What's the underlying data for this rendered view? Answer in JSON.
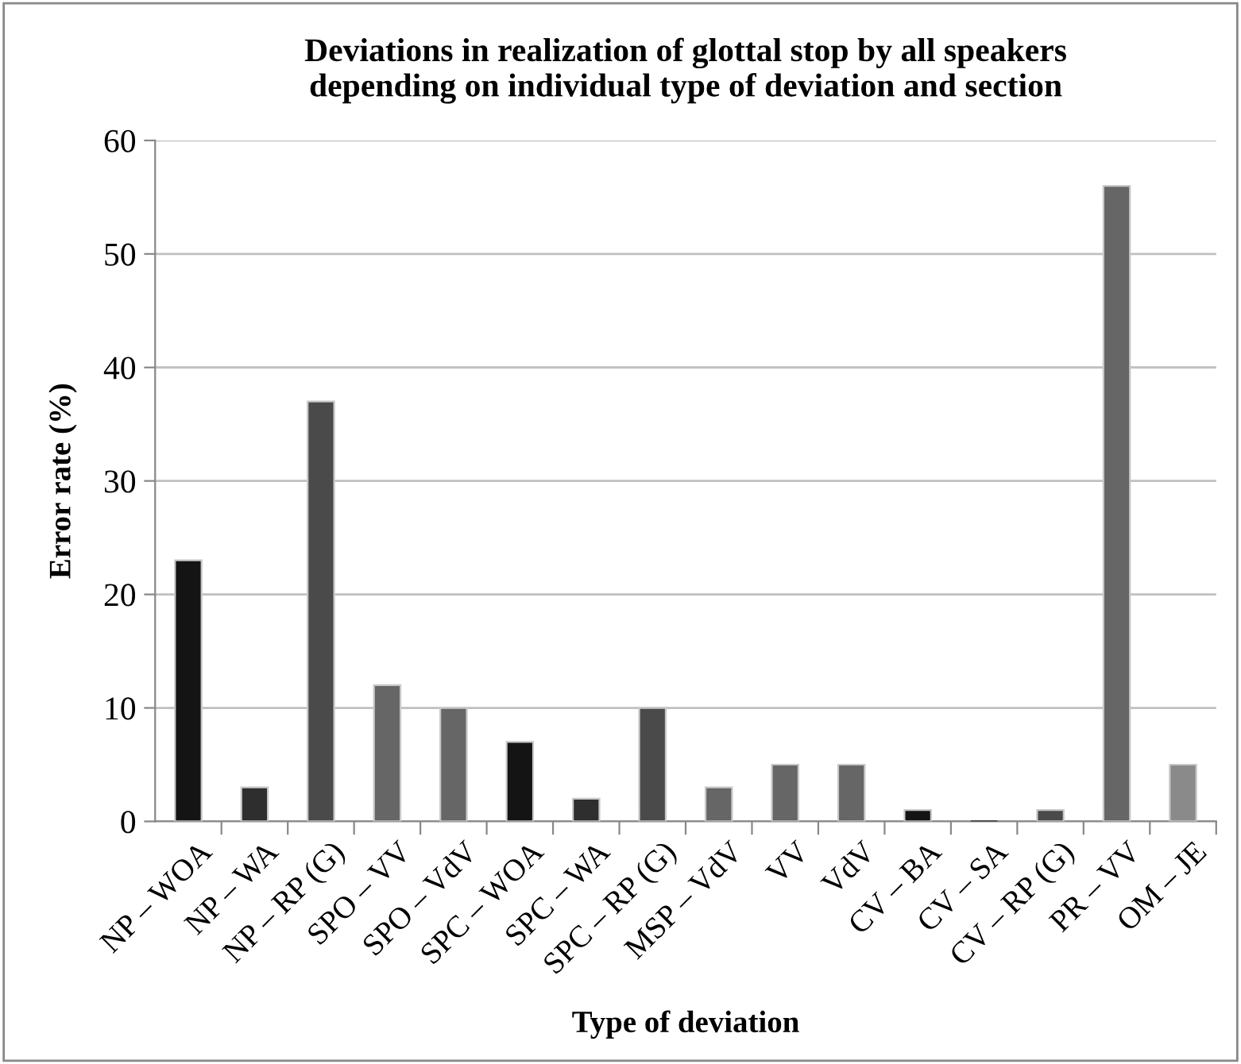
{
  "chart_data": {
    "type": "bar",
    "title": "Deviations in realization of glottal stop by all speakers\ndepending on individual type of deviation and section",
    "xlabel": "Type of deviation",
    "ylabel": "Error rate (%)",
    "categories": [
      "NP – WOA",
      "NP – WA",
      "NP – RP (G)",
      "SPO – VV",
      "SPO – VdV",
      "SPC – WOA",
      "SPC – WA",
      "SPC – RP (G)",
      "MSP – VdV",
      "VV",
      "VdV",
      "CV – BA",
      "CV – SA",
      "CV – RP (G)",
      "PR – VV",
      "OM – JE"
    ],
    "values": [
      23,
      3,
      37,
      12,
      10,
      7,
      2,
      10,
      3,
      5,
      5,
      1,
      0,
      1,
      56,
      5
    ],
    "colors": [
      "#141414",
      "#2e2e2e",
      "#4a4a4a",
      "#666666",
      "#666666",
      "#141414",
      "#2e2e2e",
      "#4a4a4a",
      "#666666",
      "#666666",
      "#666666",
      "#141414",
      "#2e2e2e",
      "#4a4a4a",
      "#666666",
      "#8a8a8a"
    ],
    "ylim": [
      0,
      60
    ],
    "yticks": [
      0,
      10,
      20,
      30,
      40,
      50,
      60
    ],
    "grid": "y",
    "legend": false
  }
}
